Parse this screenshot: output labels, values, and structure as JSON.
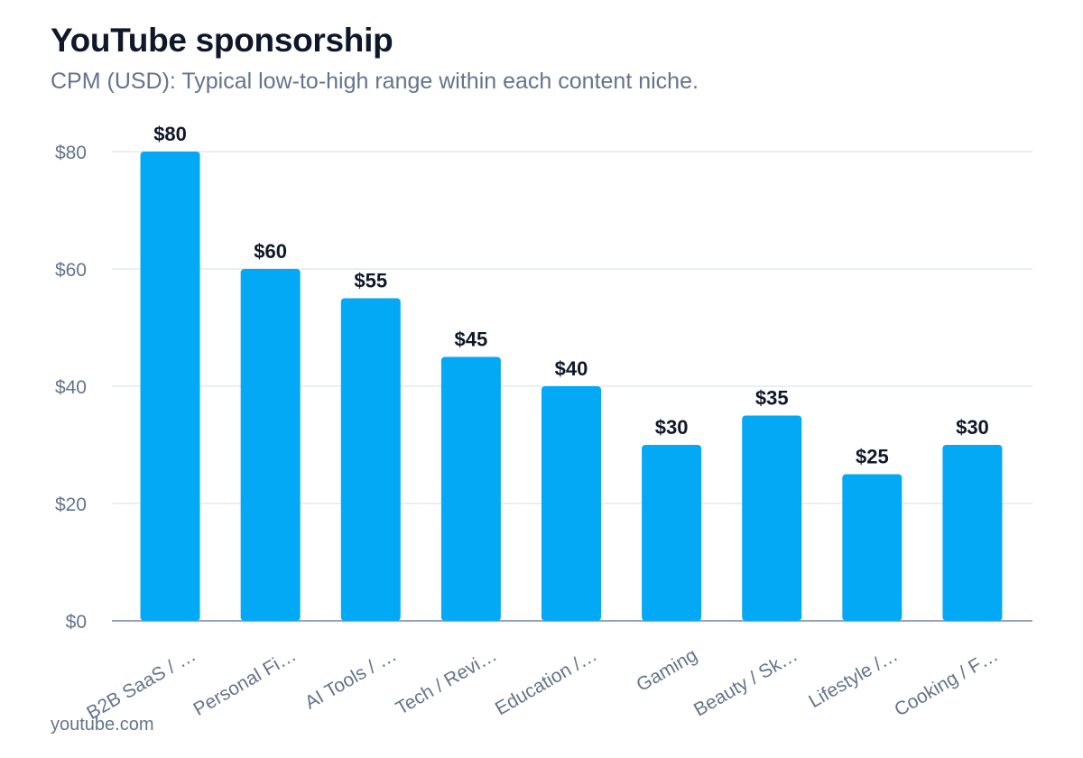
{
  "header": {
    "title": "YouTube sponsorship",
    "subtitle": "CPM (USD): Typical low-to-high range within each content niche."
  },
  "footer": {
    "source": "youtube.com"
  },
  "colors": {
    "bar": "#03a9f4",
    "grid": "#e2e8f0",
    "axis": "#94a3b8",
    "tick_text": "#64748b",
    "value_text": "#0f172a"
  },
  "chart_data": {
    "type": "bar",
    "categories": [
      "B2B SaaS / …",
      "Personal Fi…",
      "AI Tools / …",
      "Tech / Revi…",
      "Education /…",
      "Gaming",
      "Beauty / Sk…",
      "Lifestyle /…",
      "Cooking / F…"
    ],
    "values": [
      80,
      60,
      55,
      45,
      40,
      30,
      35,
      25,
      30
    ],
    "value_labels": [
      "$80",
      "$60",
      "$55",
      "$45",
      "$40",
      "$30",
      "$35",
      "$25",
      "$30"
    ],
    "yticks": [
      0,
      20,
      40,
      60,
      80
    ],
    "ytick_labels": [
      "$0",
      "$20",
      "$40",
      "$60",
      "$80"
    ],
    "ylim": [
      0,
      80
    ],
    "grid": true,
    "legend": "none"
  }
}
